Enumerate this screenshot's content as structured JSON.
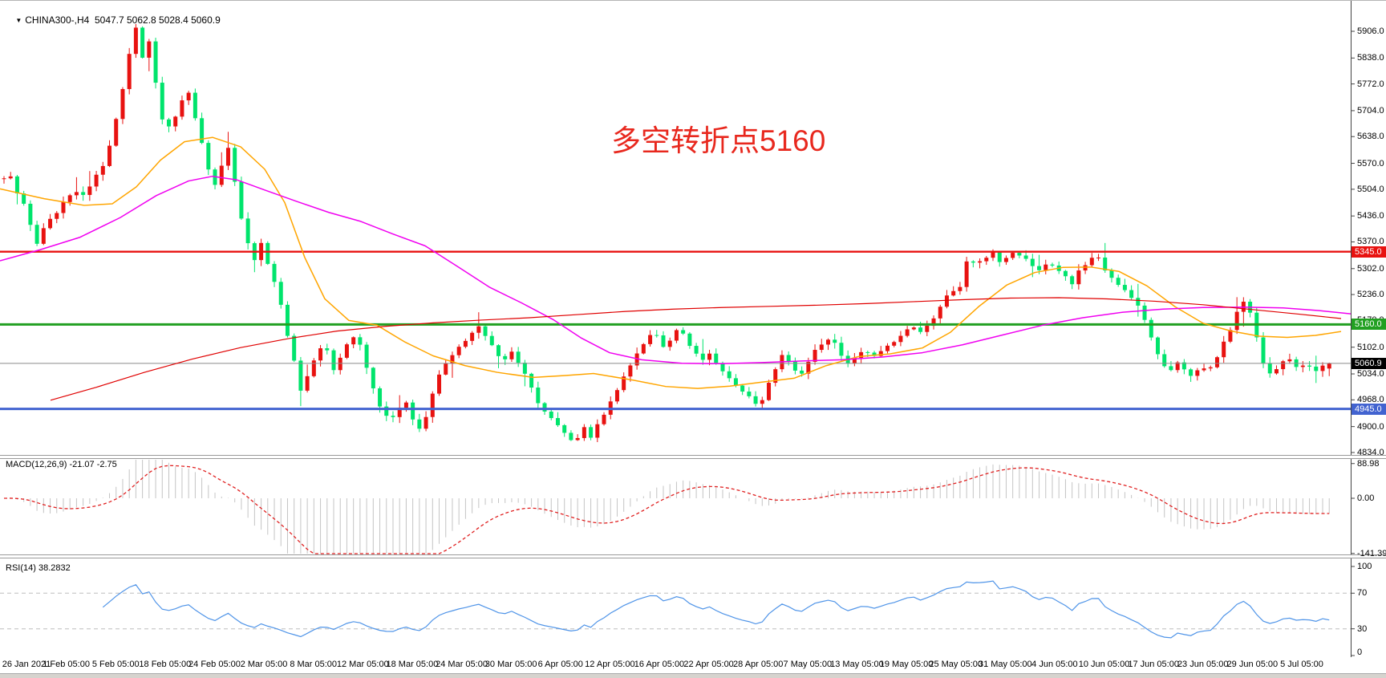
{
  "title_bar": {
    "symbol_period": "CHINA300-,H4",
    "ohlc": "  5047.7 5062.8 5028.4 5060.9",
    "dropdown_icon": "symbol-dropdown-icon"
  },
  "annotation": {
    "text": "多空转折点5160",
    "color": "#e8281e"
  },
  "indicators": {
    "macd": {
      "label": "MACD(12,26,9) -21.07 -2.75",
      "ticks": [
        "88.98",
        "0.00",
        "-141.39"
      ],
      "tick_values": [
        88.98,
        0,
        -141.39
      ]
    },
    "rsi": {
      "label": "RSI(14) 38.2832",
      "ticks": [
        "100",
        "70",
        "30",
        "0"
      ],
      "tick_values": [
        100,
        70,
        30,
        0
      ]
    }
  },
  "price_axis": {
    "ticks": [
      "5906.0",
      "5838.0",
      "5772.0",
      "5704.0",
      "5638.0",
      "5570.0",
      "5504.0",
      "5436.0",
      "5370.0",
      "5302.0",
      "5236.0",
      "5170.0",
      "5102.0",
      "5034.0",
      "4968.0",
      "4900.0",
      "4834.0"
    ],
    "badges": [
      {
        "label": "5345.0",
        "bg": "#e81210",
        "price": 5345.0
      },
      {
        "label": "5160.0",
        "bg": "#22a022",
        "price": 5160.0
      },
      {
        "label": "5060.9",
        "bg": "#000000",
        "price": 5060.9
      },
      {
        "label": "4945.0",
        "bg": "#4263d0",
        "price": 4945.0
      }
    ]
  },
  "time_axis": {
    "labels": [
      "26 Jan 2021",
      "1 Feb 05:00",
      "5 Feb 05:00",
      "18 Feb 05:00",
      "24 Feb 05:00",
      "2 Mar 05:00",
      "8 Mar 05:00",
      "12 Mar 05:00",
      "18 Mar 05:00",
      "24 Mar 05:00",
      "30 Mar 05:00",
      "6 Apr 05:00",
      "12 Apr 05:00",
      "16 Apr 05:00",
      "22 Apr 05:00",
      "28 Apr 05:00",
      "7 May 05:00",
      "13 May 05:00",
      "19 May 05:00",
      "25 May 05:00",
      "31 May 05:00",
      "4 Jun 05:00",
      "10 Jun 05:00",
      "17 Jun 05:00",
      "23 Jun 05:00",
      "29 Jun 05:00",
      "5 Jul 05:00"
    ]
  },
  "chart_data": {
    "type": "candlestick",
    "title": "CHINA300-,H4",
    "symbol": "CHINA300-",
    "timeframe": "H4",
    "last_bar": {
      "open": 5047.7,
      "high": 5062.8,
      "low": 5028.4,
      "close": 5060.9
    },
    "ylim": [
      4824,
      5943
    ],
    "y_ticks": [
      5906,
      5838,
      5772,
      5704,
      5638,
      5570,
      5504,
      5436,
      5370,
      5302,
      5236,
      5170,
      5102,
      5034,
      4968,
      4900,
      4834
    ],
    "grid": false,
    "bar_count": 202,
    "colors": {
      "up": "#e81210",
      "down": "#00e46c",
      "macd_hist": "#c4c4c4",
      "macd_signal": "#e02020",
      "rsi_line": "#4f94e8",
      "ma_fast": "#ffa500",
      "ma_mid": "#f000f0",
      "ma_slow": "#e00000"
    },
    "horizontal_lines": [
      {
        "price": 5345.0,
        "color": "#e81210",
        "w": 2.4,
        "name": "resistance-5345"
      },
      {
        "price": 5160.0,
        "color": "#22a022",
        "w": 3,
        "name": "pivot-5160"
      },
      {
        "price": 5060.9,
        "color": "#8a8a8a",
        "w": 1,
        "name": "current-price-5060.9"
      },
      {
        "price": 4945.0,
        "color": "#4263d0",
        "w": 3,
        "name": "support-4945"
      }
    ],
    "price_path": [
      [
        2,
        5525
      ],
      [
        12,
        5545
      ],
      [
        22,
        5490
      ],
      [
        32,
        5455
      ],
      [
        45,
        5360
      ],
      [
        55,
        5405
      ],
      [
        68,
        5440
      ],
      [
        80,
        5470
      ],
      [
        92,
        5505
      ],
      [
        104,
        5485
      ],
      [
        116,
        5530
      ],
      [
        128,
        5565
      ],
      [
        140,
        5640
      ],
      [
        152,
        5745
      ],
      [
        162,
        5855
      ],
      [
        168,
        5930
      ],
      [
        176,
        5835
      ],
      [
        186,
        5880
      ],
      [
        196,
        5750
      ],
      [
        206,
        5645
      ],
      [
        216,
        5680
      ],
      [
        226,
        5725
      ],
      [
        236,
        5755
      ],
      [
        246,
        5665
      ],
      [
        256,
        5585
      ],
      [
        266,
        5500
      ],
      [
        276,
        5560
      ],
      [
        286,
        5615
      ],
      [
        296,
        5475
      ],
      [
        306,
        5390
      ],
      [
        316,
        5320
      ],
      [
        326,
        5368
      ],
      [
        336,
        5300
      ],
      [
        346,
        5250
      ],
      [
        355,
        5160
      ],
      [
        365,
        5080
      ],
      [
        375,
        4990
      ],
      [
        385,
        5040
      ],
      [
        395,
        5085
      ],
      [
        405,
        5115
      ],
      [
        415,
        5042
      ],
      [
        425,
        5075
      ],
      [
        435,
        5120
      ],
      [
        445,
        5135
      ],
      [
        455,
        5062
      ],
      [
        465,
        5000
      ],
      [
        475,
        4942
      ],
      [
        487,
        4920
      ],
      [
        497,
        4945
      ],
      [
        507,
        4962
      ],
      [
        517,
        4905
      ],
      [
        527,
        4890
      ],
      [
        537,
        4975
      ],
      [
        547,
        5028
      ],
      [
        557,
        5068
      ],
      [
        567,
        5092
      ],
      [
        577,
        5108
      ],
      [
        587,
        5135
      ],
      [
        597,
        5152
      ],
      [
        607,
        5128
      ],
      [
        617,
        5095
      ],
      [
        627,
        5062
      ],
      [
        637,
        5092
      ],
      [
        647,
        5062
      ],
      [
        657,
        5028
      ],
      [
        667,
        4975
      ],
      [
        677,
        4945
      ],
      [
        687,
        4920
      ],
      [
        697,
        4898
      ],
      [
        707,
        4878
      ],
      [
        717,
        4855
      ],
      [
        727,
        4905
      ],
      [
        737,
        4872
      ],
      [
        747,
        4912
      ],
      [
        757,
        4945
      ],
      [
        767,
        4988
      ],
      [
        777,
        5022
      ],
      [
        787,
        5058
      ],
      [
        797,
        5098
      ],
      [
        807,
        5125
      ],
      [
        817,
        5140
      ],
      [
        827,
        5105
      ],
      [
        837,
        5122
      ],
      [
        847,
        5155
      ],
      [
        857,
        5118
      ],
      [
        867,
        5088
      ],
      [
        877,
        5072
      ],
      [
        887,
        5085
      ],
      [
        897,
        5048
      ],
      [
        907,
        5028
      ],
      [
        917,
        5002
      ],
      [
        927,
        4985
      ],
      [
        937,
        4968
      ],
      [
        947,
        4952
      ],
      [
        957,
        5005
      ],
      [
        967,
        5048
      ],
      [
        977,
        5088
      ],
      [
        987,
        5052
      ],
      [
        997,
        5022
      ],
      [
        1007,
        5062
      ],
      [
        1017,
        5095
      ],
      [
        1027,
        5115
      ],
      [
        1037,
        5125
      ],
      [
        1047,
        5085
      ],
      [
        1057,
        5062
      ],
      [
        1067,
        5075
      ],
      [
        1077,
        5092
      ],
      [
        1087,
        5078
      ],
      [
        1097,
        5092
      ],
      [
        1107,
        5108
      ],
      [
        1117,
        5122
      ],
      [
        1127,
        5142
      ],
      [
        1137,
        5152
      ],
      [
        1147,
        5142
      ],
      [
        1157,
        5158
      ],
      [
        1167,
        5185
      ],
      [
        1177,
        5228
      ],
      [
        1187,
        5242
      ],
      [
        1197,
        5252
      ],
      [
        1207,
        5332
      ],
      [
        1217,
        5312
      ],
      [
        1227,
        5328
      ],
      [
        1237,
        5345
      ],
      [
        1247,
        5318
      ],
      [
        1257,
        5335
      ],
      [
        1267,
        5345
      ],
      [
        1277,
        5328
      ],
      [
        1287,
        5310
      ],
      [
        1297,
        5298
      ],
      [
        1307,
        5318
      ],
      [
        1317,
        5302
      ],
      [
        1327,
        5282
      ],
      [
        1337,
        5262
      ],
      [
        1347,
        5302
      ],
      [
        1357,
        5322
      ],
      [
        1367,
        5338
      ],
      [
        1377,
        5302
      ],
      [
        1387,
        5275
      ],
      [
        1397,
        5252
      ],
      [
        1407,
        5242
      ],
      [
        1417,
        5212
      ],
      [
        1427,
        5172
      ],
      [
        1437,
        5118
      ],
      [
        1447,
        5062
      ],
      [
        1457,
        5040
      ],
      [
        1467,
        5062
      ],
      [
        1477,
        5046
      ],
      [
        1487,
        5028
      ],
      [
        1497,
        5058
      ],
      [
        1507,
        5042
      ],
      [
        1517,
        5072
      ],
      [
        1527,
        5122
      ],
      [
        1537,
        5162
      ],
      [
        1547,
        5222
      ],
      [
        1557,
        5202
      ],
      [
        1567,
        5128
      ],
      [
        1577,
        5048
      ],
      [
        1587,
        5032
      ],
      [
        1597,
        5062
      ],
      [
        1607,
        5075
      ],
      [
        1617,
        5048
      ],
      [
        1627,
        5062
      ],
      [
        1637,
        5040
      ],
      [
        1647,
        5052
      ],
      [
        1657,
        5048
      ],
      [
        1664,
        5060.9
      ]
    ],
    "moving_averages": [
      {
        "name": "ma-fast-orange",
        "color": "#ffa500",
        "width": 1.5,
        "path": [
          [
            0,
            5505
          ],
          [
            55,
            5480
          ],
          [
            105,
            5463
          ],
          [
            140,
            5467
          ],
          [
            170,
            5510
          ],
          [
            200,
            5578
          ],
          [
            230,
            5625
          ],
          [
            265,
            5636
          ],
          [
            300,
            5612
          ],
          [
            330,
            5555
          ],
          [
            355,
            5470
          ],
          [
            380,
            5330
          ],
          [
            405,
            5225
          ],
          [
            435,
            5170
          ],
          [
            470,
            5158
          ],
          [
            505,
            5115
          ],
          [
            540,
            5080
          ],
          [
            580,
            5055
          ],
          [
            620,
            5038
          ],
          [
            665,
            5025
          ],
          [
            705,
            5030
          ],
          [
            740,
            5035
          ],
          [
            790,
            5018
          ],
          [
            830,
            5002
          ],
          [
            870,
            4997
          ],
          [
            910,
            5003
          ],
          [
            950,
            5013
          ],
          [
            990,
            5023
          ],
          [
            1030,
            5055
          ],
          [
            1070,
            5078
          ],
          [
            1110,
            5085
          ],
          [
            1150,
            5100
          ],
          [
            1185,
            5140
          ],
          [
            1220,
            5205
          ],
          [
            1255,
            5260
          ],
          [
            1290,
            5292
          ],
          [
            1325,
            5305
          ],
          [
            1360,
            5306
          ],
          [
            1395,
            5295
          ],
          [
            1430,
            5258
          ],
          [
            1465,
            5205
          ],
          [
            1500,
            5163
          ],
          [
            1535,
            5143
          ],
          [
            1570,
            5130
          ],
          [
            1605,
            5127
          ],
          [
            1640,
            5132
          ],
          [
            1672,
            5142
          ]
        ]
      },
      {
        "name": "ma-mid-magenta",
        "color": "#f000f0",
        "width": 1.5,
        "path": [
          [
            0,
            5322
          ],
          [
            50,
            5350
          ],
          [
            100,
            5382
          ],
          [
            150,
            5432
          ],
          [
            195,
            5488
          ],
          [
            235,
            5525
          ],
          [
            265,
            5537
          ],
          [
            295,
            5528
          ],
          [
            330,
            5502
          ],
          [
            370,
            5473
          ],
          [
            410,
            5445
          ],
          [
            450,
            5422
          ],
          [
            490,
            5390
          ],
          [
            530,
            5360
          ],
          [
            570,
            5308
          ],
          [
            610,
            5255
          ],
          [
            650,
            5215
          ],
          [
            690,
            5172
          ],
          [
            725,
            5125
          ],
          [
            760,
            5088
          ],
          [
            800,
            5070
          ],
          [
            850,
            5061
          ],
          [
            900,
            5060
          ],
          [
            950,
            5063
          ],
          [
            1000,
            5067
          ],
          [
            1050,
            5070
          ],
          [
            1100,
            5077
          ],
          [
            1150,
            5088
          ],
          [
            1200,
            5108
          ],
          [
            1250,
            5133
          ],
          [
            1300,
            5158
          ],
          [
            1350,
            5177
          ],
          [
            1400,
            5191
          ],
          [
            1450,
            5199
          ],
          [
            1500,
            5203
          ],
          [
            1550,
            5204
          ],
          [
            1600,
            5202
          ],
          [
            1645,
            5195
          ],
          [
            1684,
            5187
          ]
        ]
      },
      {
        "name": "ma-slow-red",
        "color": "#e00000",
        "width": 1.2,
        "path": [
          [
            63,
            4967
          ],
          [
            120,
            5000
          ],
          [
            180,
            5038
          ],
          [
            240,
            5072
          ],
          [
            300,
            5101
          ],
          [
            360,
            5124
          ],
          [
            420,
            5143
          ],
          [
            480,
            5155
          ],
          [
            540,
            5164
          ],
          [
            600,
            5171
          ],
          [
            660,
            5177
          ],
          [
            720,
            5185
          ],
          [
            780,
            5193
          ],
          [
            840,
            5199
          ],
          [
            900,
            5203
          ],
          [
            960,
            5206
          ],
          [
            1020,
            5209
          ],
          [
            1080,
            5213
          ],
          [
            1140,
            5218
          ],
          [
            1200,
            5223
          ],
          [
            1260,
            5227
          ],
          [
            1320,
            5228
          ],
          [
            1380,
            5225
          ],
          [
            1440,
            5219
          ],
          [
            1500,
            5210
          ],
          [
            1560,
            5198
          ],
          [
            1620,
            5186
          ],
          [
            1672,
            5175
          ]
        ]
      }
    ],
    "macd": {
      "fast": 12,
      "slow": 26,
      "signal": 9,
      "last_macd": -21.07,
      "last_signal": -2.75,
      "range": [
        -141.39,
        88.98
      ]
    },
    "rsi": {
      "period": 14,
      "last": 38.2832,
      "range": [
        0,
        100
      ],
      "levels": [
        70,
        30
      ]
    }
  }
}
